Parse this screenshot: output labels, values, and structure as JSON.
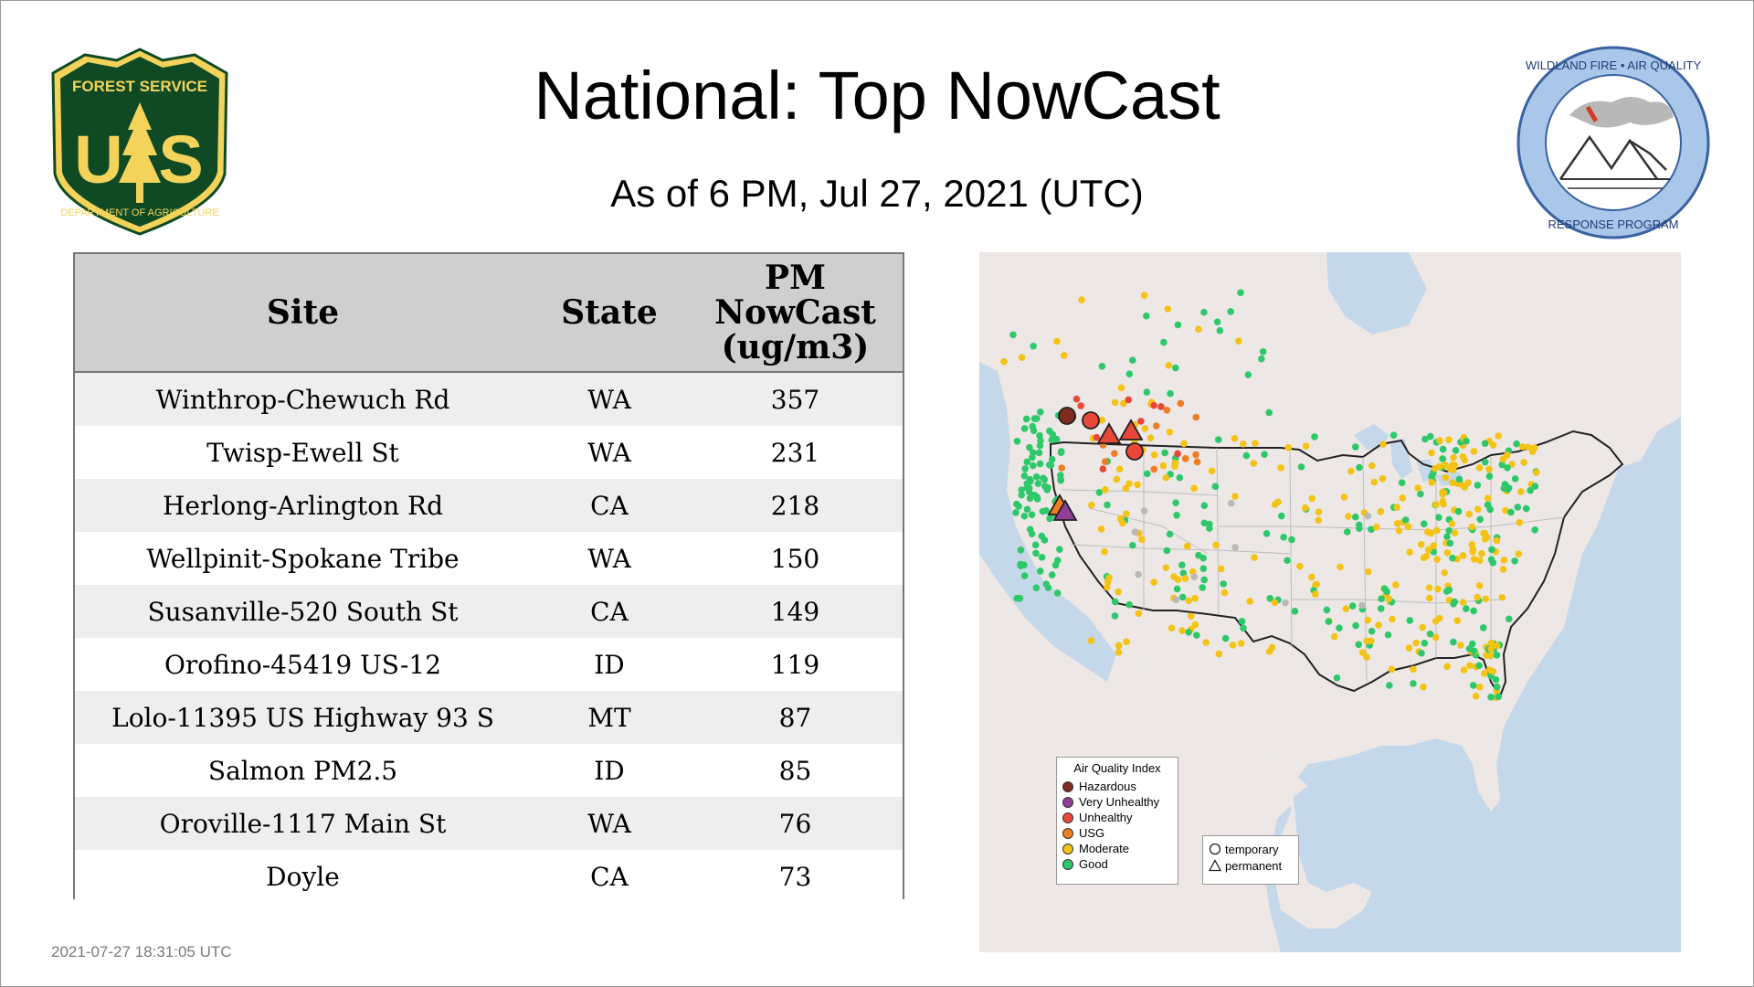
{
  "header": {
    "title": "National: Top NowCast",
    "subtitle": "As of  6 PM, Jul 27, 2021 (UTC)"
  },
  "logos": {
    "left": {
      "name": "forest-service-shield",
      "top_text": "FOREST SERVICE",
      "letters": "U S",
      "bottom_text": "DEPARTMENT OF AGRICULTURE",
      "colors": {
        "green": "#0f4a24",
        "gold": "#f4d35a"
      }
    },
    "right": {
      "name": "wildland-fire-air-quality-seal",
      "top_text": "WILDLAND FIRE • AIR QUALITY",
      "bottom_text": "RESPONSE PROGRAM",
      "colors": {
        "ring": "#a9c7e8",
        "border": "#3a62a0"
      }
    }
  },
  "table": {
    "headers": {
      "site": "Site",
      "state": "State",
      "nowcast_lines": [
        "PM",
        "NowCast",
        "(ug/m3)"
      ]
    },
    "rows": [
      {
        "site": "Winthrop-Chewuch Rd",
        "state": "WA",
        "value": "357"
      },
      {
        "site": "Twisp-Ewell St",
        "state": "WA",
        "value": "231"
      },
      {
        "site": "Herlong-Arlington Rd",
        "state": "CA",
        "value": "218"
      },
      {
        "site": "Wellpinit-Spokane Tribe",
        "state": "WA",
        "value": "150"
      },
      {
        "site": "Susanville-520 South St",
        "state": "CA",
        "value": "149"
      },
      {
        "site": "Orofino-45419 US-12",
        "state": "ID",
        "value": "119"
      },
      {
        "site": "Lolo-11395 US Highway 93 S",
        "state": "MT",
        "value": "87"
      },
      {
        "site": "Salmon PM2.5",
        "state": "ID",
        "value": "85"
      },
      {
        "site": "Oroville-1117 Main St",
        "state": "WA",
        "value": "76"
      },
      {
        "site": "Doyle",
        "state": "CA",
        "value": "73"
      }
    ]
  },
  "map": {
    "legend_title": "Air Quality Index",
    "categories": [
      {
        "label": "Hazardous",
        "color": "#7e2a1f"
      },
      {
        "label": "Very Unhealthy",
        "color": "#8f3f97"
      },
      {
        "label": "Unhealthy",
        "color": "#e8473a"
      },
      {
        "label": "USG",
        "color": "#ef7d22"
      },
      {
        "label": "Moderate",
        "color": "#f3c316"
      },
      {
        "label": "Good",
        "color": "#2ec86b"
      }
    ],
    "shape_legend": [
      {
        "label": "temporary",
        "shape": "circle-icon"
      },
      {
        "label": "permanent",
        "shape": "triangle-icon"
      }
    ],
    "colors": {
      "water": "#c5d8e9",
      "land": "#ede8e6",
      "border": "#222222",
      "state_lines": "#bdbdbd",
      "no_data": "#b9b9b9"
    }
  },
  "footer": {
    "timestamp": "2021-07-27 18:31:05 UTC"
  }
}
